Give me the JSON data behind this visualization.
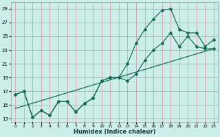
{
  "xlabel": "Humidex (Indice chaleur)",
  "bg_color": "#cceee8",
  "grid_color": "#d4a0a8",
  "line_color": "#1a6b5a",
  "xlim": [
    -0.5,
    23.5
  ],
  "ylim": [
    12.5,
    30.0
  ],
  "xticks": [
    0,
    1,
    2,
    3,
    4,
    5,
    6,
    7,
    8,
    9,
    10,
    11,
    12,
    13,
    14,
    15,
    16,
    17,
    18,
    19,
    20,
    21,
    22,
    23
  ],
  "yticks": [
    13,
    15,
    17,
    19,
    21,
    23,
    25,
    27,
    29
  ],
  "line1_x": [
    0,
    1,
    2,
    3,
    4,
    5,
    6,
    7,
    8,
    9,
    10,
    11,
    12,
    13,
    14,
    15,
    16,
    17,
    18,
    19,
    20,
    21,
    22,
    23
  ],
  "line1_y": [
    16.5,
    17.0,
    13.2,
    14.2,
    13.5,
    15.5,
    15.5,
    14.0,
    15.2,
    16.0,
    18.5,
    19.0,
    19.0,
    21.0,
    24.0,
    26.0,
    27.5,
    28.8,
    29.0,
    26.0,
    25.5,
    25.5,
    23.5,
    24.5
  ],
  "line2_x": [
    0,
    1,
    2,
    3,
    4,
    5,
    6,
    7,
    8,
    9,
    10,
    11,
    12,
    13,
    14,
    15,
    16,
    17,
    18,
    19,
    20,
    21,
    22,
    23
  ],
  "line2_y": [
    16.5,
    17.0,
    13.2,
    14.2,
    13.5,
    15.5,
    15.5,
    14.0,
    15.2,
    16.0,
    18.5,
    19.0,
    19.0,
    18.5,
    19.5,
    21.5,
    23.0,
    24.0,
    25.5,
    23.5,
    25.0,
    23.5,
    23.2,
    23.2
  ],
  "line3_x": [
    0,
    23
  ],
  "line3_y": [
    14.5,
    23.2
  ]
}
